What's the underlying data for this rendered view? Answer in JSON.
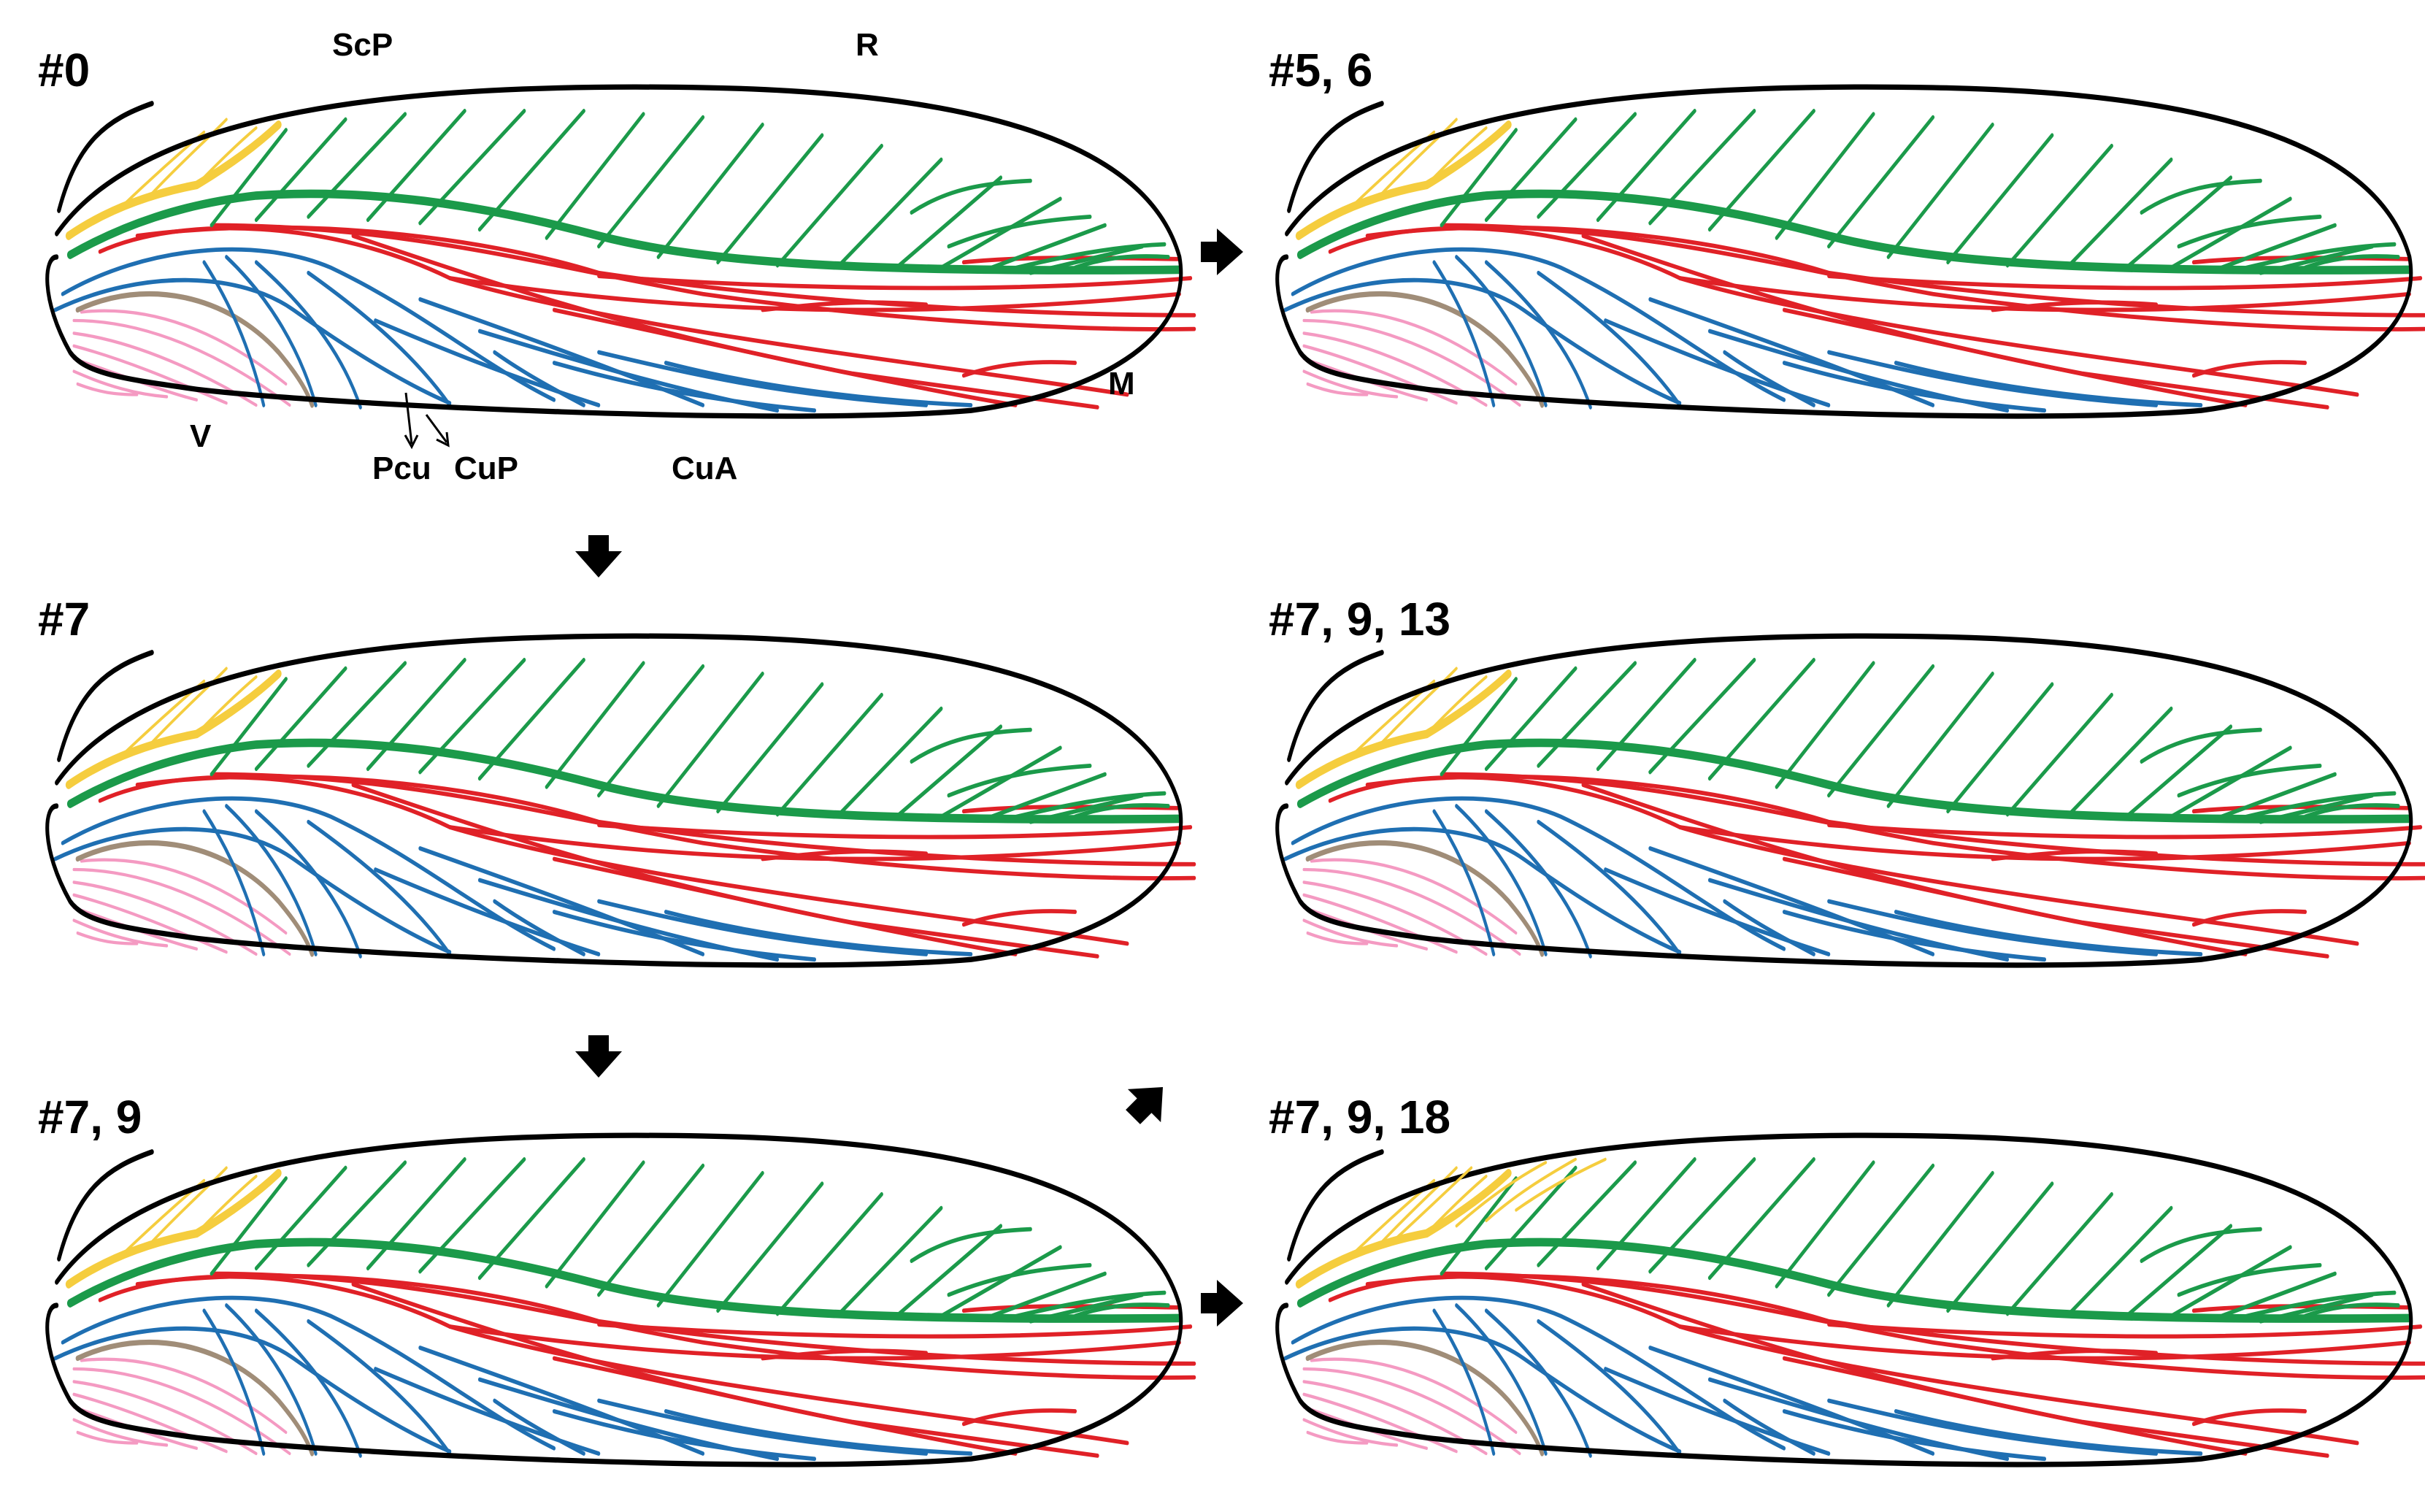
{
  "figure": {
    "colors": {
      "ScP": "#f5cd3e",
      "R": "#1b9a4a",
      "M": "#e02127",
      "CuA": "#1f6fb2",
      "CuP": "#1f6fb2",
      "Pcu": "#a08d78",
      "V": "#f49ac2",
      "outline": "#000000",
      "arrow": "#000000"
    },
    "vein_labels": {
      "ScP": "ScP",
      "R": "R",
      "M": "M",
      "V": "V",
      "Pcu": "Pcu",
      "CuP": "CuP",
      "CuA": "CuA"
    },
    "panels": [
      {
        "id": "p0",
        "label": "#0",
        "variant": "base"
      },
      {
        "id": "p56",
        "label": "#5, 6",
        "variant": "m-expanded"
      },
      {
        "id": "p7",
        "label": "#7",
        "variant": "cu-shift"
      },
      {
        "id": "p79_13",
        "label": "#7, 9, 13",
        "variant": "fused"
      },
      {
        "id": "p79",
        "label": "#7, 9",
        "variant": "fused"
      },
      {
        "id": "p79_18",
        "label": "#7, 9, 18",
        "variant": "scp-expanded"
      }
    ],
    "arrows": [
      {
        "id": "arrow-right-1",
        "direction": "right-arrow-icon"
      },
      {
        "id": "arrow-down-1",
        "direction": "down-arrow-icon"
      },
      {
        "id": "arrow-down-2",
        "direction": "down-arrow-icon"
      },
      {
        "id": "arrow-diag",
        "direction": "up-right-arrow-icon"
      },
      {
        "id": "arrow-right-2",
        "direction": "right-arrow-icon"
      }
    ]
  }
}
